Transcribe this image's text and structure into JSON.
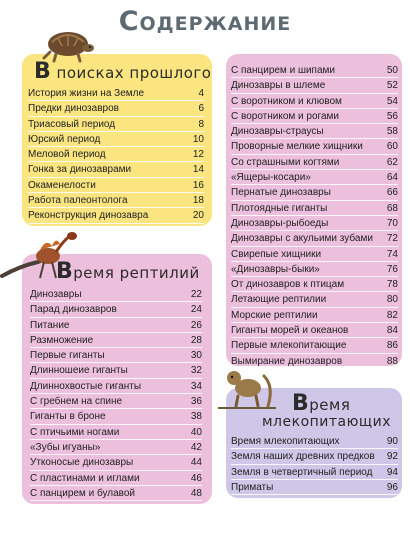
{
  "title": "Содержание",
  "sections": [
    {
      "heading_cap": "В",
      "heading_rest": " поисках прошлого",
      "entries": [
        {
          "label": "История жизни на Земле",
          "page": "4"
        },
        {
          "label": "Предки динозавров",
          "page": "6"
        },
        {
          "label": "Триасовый период",
          "page": "8"
        },
        {
          "label": "Юрский период",
          "page": "10"
        },
        {
          "label": "Меловой период",
          "page": "12"
        },
        {
          "label": "Гонка за динозаврами",
          "page": "14"
        },
        {
          "label": "Окаменелости",
          "page": "16"
        },
        {
          "label": "Работа палеонтолога",
          "page": "18"
        },
        {
          "label": "Реконструкция динозавра",
          "page": "20"
        }
      ]
    },
    {
      "heading_cap": "В",
      "heading_rest": "ремя рептилий",
      "entries": [
        {
          "label": "Динозавры",
          "page": "22"
        },
        {
          "label": "Парад динозавров",
          "page": "24"
        },
        {
          "label": "Питание",
          "page": "26"
        },
        {
          "label": "Размножение",
          "page": "28"
        },
        {
          "label": "Первые гиганты",
          "page": "30"
        },
        {
          "label": "Длинношеие гиганты",
          "page": "32"
        },
        {
          "label": "Длиннохвостые гиганты",
          "page": "34"
        },
        {
          "label": "С гребнем на спине",
          "page": "36"
        },
        {
          "label": "Гиганты в броне",
          "page": "38"
        },
        {
          "label": "С птичьими ногами",
          "page": "40"
        },
        {
          "label": "«Зубы игуаны»",
          "page": "42"
        },
        {
          "label": "Утконосые динозавры",
          "page": "44"
        },
        {
          "label": "С пластинами и иглами",
          "page": "46"
        },
        {
          "label": "С панцирем и булавой",
          "page": "48"
        }
      ]
    },
    {
      "entries": [
        {
          "label": "С панцирем и шипами",
          "page": "50"
        },
        {
          "label": "Динозавры в шлеме",
          "page": "52"
        },
        {
          "label": "С воротником и клювом",
          "page": "54"
        },
        {
          "label": "С воротником и рогами",
          "page": "56"
        },
        {
          "label": "Динозавры-страусы",
          "page": "58"
        },
        {
          "label": "Проворные мелкие хищники",
          "page": "60"
        },
        {
          "label": "Со страшными когтями",
          "page": "62"
        },
        {
          "label": "«Ящеры-косари»",
          "page": "64"
        },
        {
          "label": "Пернатые динозавры",
          "page": "66"
        },
        {
          "label": "Плотоядные гиганты",
          "page": "68"
        },
        {
          "label": "Динозавры-рыбоеды",
          "page": "70"
        },
        {
          "label": "Динозавры с акульими зубами",
          "page": "72"
        },
        {
          "label": "Свирепые хищники",
          "page": "74"
        },
        {
          "label": "«Динозавры-быки»",
          "page": "76"
        },
        {
          "label": "От динозавров к птицам",
          "page": "78"
        },
        {
          "label": "Летающие рептилии",
          "page": "80"
        },
        {
          "label": "Морские рептилии",
          "page": "82"
        },
        {
          "label": "Гиганты морей и океанов",
          "page": "84"
        },
        {
          "label": "Первые млекопитающие",
          "page": "86"
        },
        {
          "label": "Вымирание динозавров",
          "page": "88"
        }
      ]
    },
    {
      "heading_cap": "В",
      "heading_rest": "ремя",
      "heading_line2": "млекопитающих",
      "entries": [
        {
          "label": "Время млекопитающих",
          "page": "90"
        },
        {
          "label": "Земля наших древних предков",
          "page": "92"
        },
        {
          "label": "Земля в четвертичный период",
          "page": "94"
        },
        {
          "label": "Приматы",
          "page": "96"
        }
      ]
    }
  ],
  "colors": {
    "yellow": "#fbe581",
    "pink": "#ecc0dd",
    "lavender": "#cfc7e8",
    "title": "#5e6a72"
  },
  "illustrations": [
    "turtle-illustration",
    "feathered-dinosaur-illustration",
    "primate-illustration"
  ]
}
